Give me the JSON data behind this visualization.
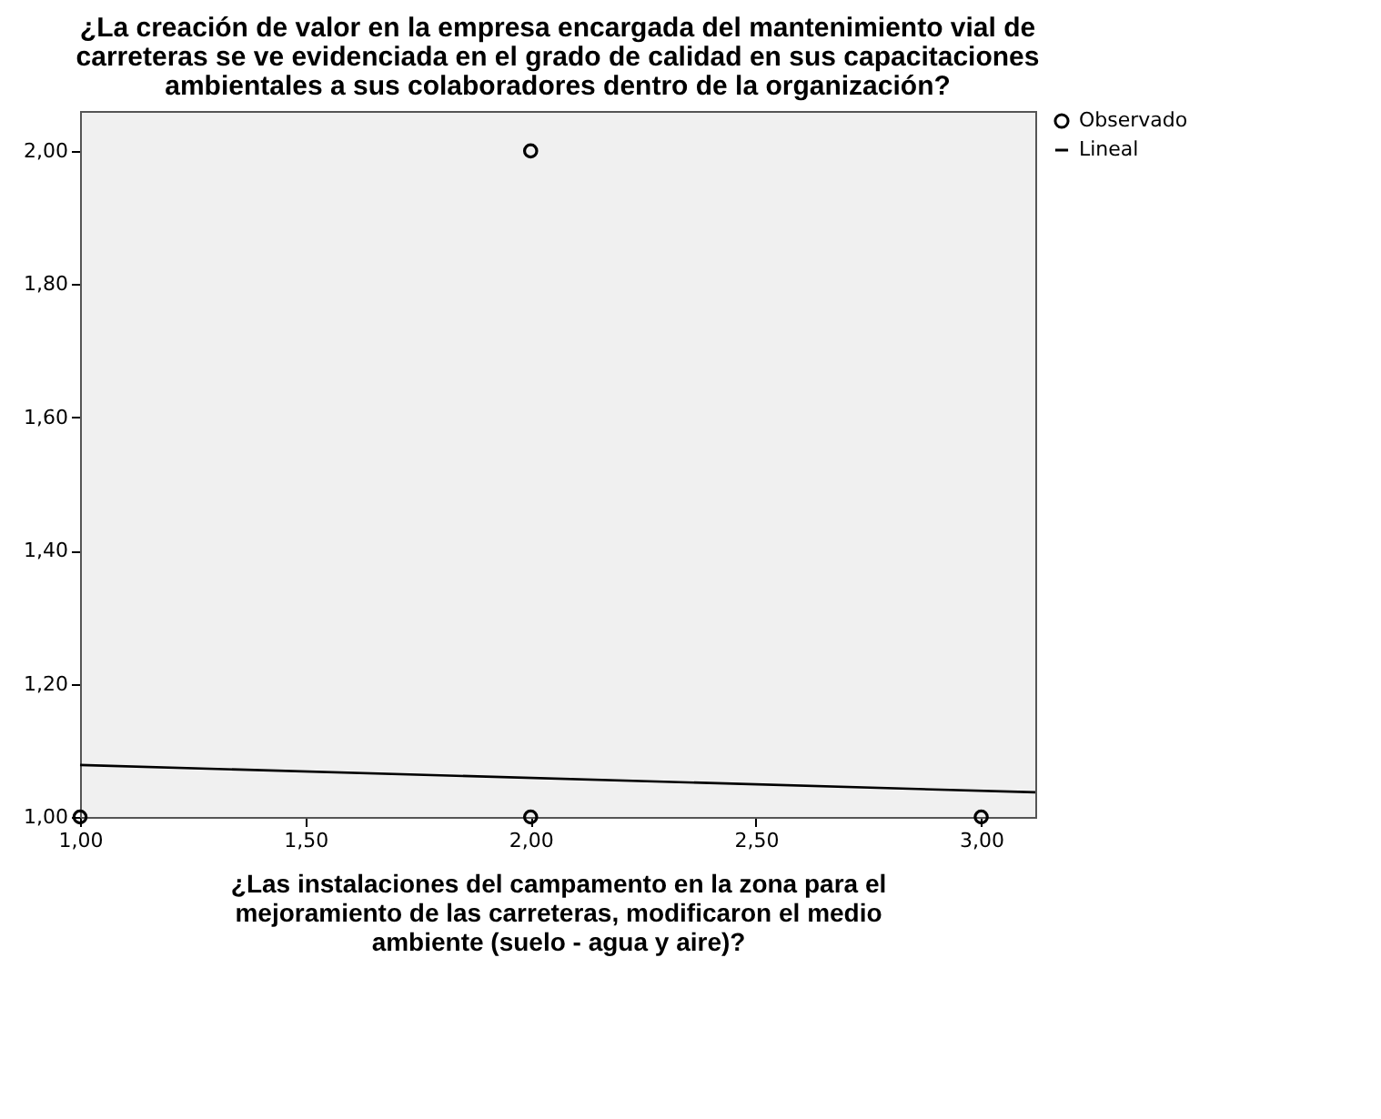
{
  "chart_data": {
    "type": "scatter",
    "title": "¿La creación de valor en la empresa encargada del mantenimiento vial de\ncarreteras se ve evidenciada en el grado de calidad en sus capacitaciones\nambientales a sus colaboradores dentro de la organización?",
    "xlabel": "¿Las instalaciones del campamento en la zona para el\nmejoramiento de las carreteras, modificaron el medio\nambiente (suelo - agua y aire)?",
    "series": [
      {
        "name": "Observado",
        "marker": "circle",
        "color": "#000000",
        "x": [
          1,
          2,
          2,
          3
        ],
        "values": [
          1,
          2,
          1,
          1
        ]
      },
      {
        "name": "Lineal",
        "type": "line",
        "line_style": "solid",
        "marker": "none",
        "color": "#000000",
        "x": [
          1,
          3.12
        ],
        "values": [
          1.078,
          1.037
        ]
      }
    ],
    "xlim": [
      1,
      3.12
    ],
    "xticks": [
      {
        "value": 1,
        "label": "1,00"
      },
      {
        "value": 1.5,
        "label": "1,50"
      },
      {
        "value": 2,
        "label": "2,00"
      },
      {
        "value": 2.5,
        "label": "2,50"
      },
      {
        "value": 3,
        "label": "3,00"
      }
    ],
    "ylim": [
      1,
      2.06
    ],
    "yticks": [
      {
        "value": 1,
        "label": "1,00"
      },
      {
        "value": 1.2,
        "label": "1,20"
      },
      {
        "value": 1.4,
        "label": "1,40"
      },
      {
        "value": 1.6,
        "label": "1,60"
      },
      {
        "value": 1.8,
        "label": "1,80"
      },
      {
        "value": 2,
        "label": "2,00"
      }
    ],
    "legend": "top right",
    "grid": false
  }
}
